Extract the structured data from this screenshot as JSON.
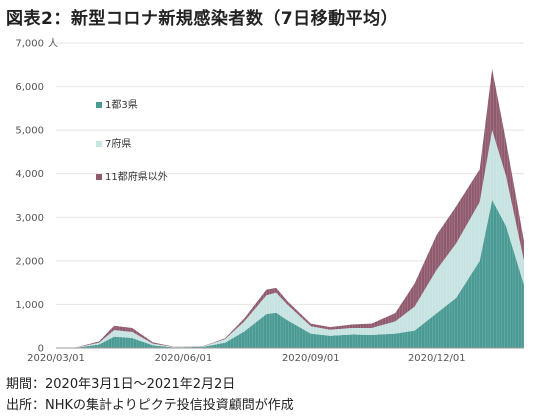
{
  "title": "図表2：新型コロナ新規感染者数（7日移動平均）",
  "footnotes": {
    "period": "期間：2020年3月1日～2021年2月2日",
    "source": "出所：NHKの集計よりピクテ投信投資顧問が作成"
  },
  "chart_data": {
    "type": "area",
    "stacked": true,
    "x_start": "2020-03-01",
    "x_end": "2021-02-02",
    "x_tick_labels": [
      "2020/03/01",
      "2020/06/01",
      "2020/09/01",
      "2020/12/01"
    ],
    "ylim": [
      0,
      7000
    ],
    "y_ticks": [
      0,
      1000,
      2000,
      3000,
      4000,
      5000,
      6000,
      7000
    ],
    "y_tick_labels": [
      "0",
      "1,000",
      "2,000",
      "3,000",
      "4,000",
      "5,000",
      "6,000",
      "7,000"
    ],
    "y_unit": "人",
    "grid": "horizontal",
    "legend_position": "top-left",
    "x": [
      "2020-03-01",
      "2020-03-15",
      "2020-04-01",
      "2020-04-12",
      "2020-04-25",
      "2020-05-10",
      "2020-05-25",
      "2020-06-15",
      "2020-07-01",
      "2020-07-15",
      "2020-07-31",
      "2020-08-07",
      "2020-08-15",
      "2020-09-01",
      "2020-09-15",
      "2020-10-01",
      "2020-10-15",
      "2020-11-01",
      "2020-11-15",
      "2020-12-01",
      "2020-12-15",
      "2021-01-01",
      "2021-01-10",
      "2021-01-20",
      "2021-02-02"
    ],
    "series": [
      {
        "name": "1都3県",
        "color": "#4a9a94",
        "values": [
          2,
          5,
          80,
          260,
          230,
          60,
          15,
          25,
          120,
          380,
          780,
          810,
          640,
          330,
          280,
          310,
          300,
          330,
          400,
          800,
          1150,
          2000,
          3400,
          2800,
          1450
        ]
      },
      {
        "name": "7府県",
        "color": "#c6e3e1",
        "values": [
          1,
          3,
          40,
          150,
          140,
          40,
          10,
          10,
          80,
          230,
          430,
          460,
          360,
          170,
          140,
          150,
          160,
          280,
          550,
          1000,
          1250,
          1350,
          1600,
          1150,
          550
        ]
      },
      {
        "name": "11都府県以外",
        "color": "#8f5a6e",
        "values": [
          1,
          2,
          30,
          100,
          90,
          30,
          5,
          5,
          20,
          70,
          130,
          110,
          80,
          60,
          60,
          80,
          100,
          190,
          530,
          800,
          850,
          750,
          1400,
          800,
          450
        ]
      }
    ]
  }
}
